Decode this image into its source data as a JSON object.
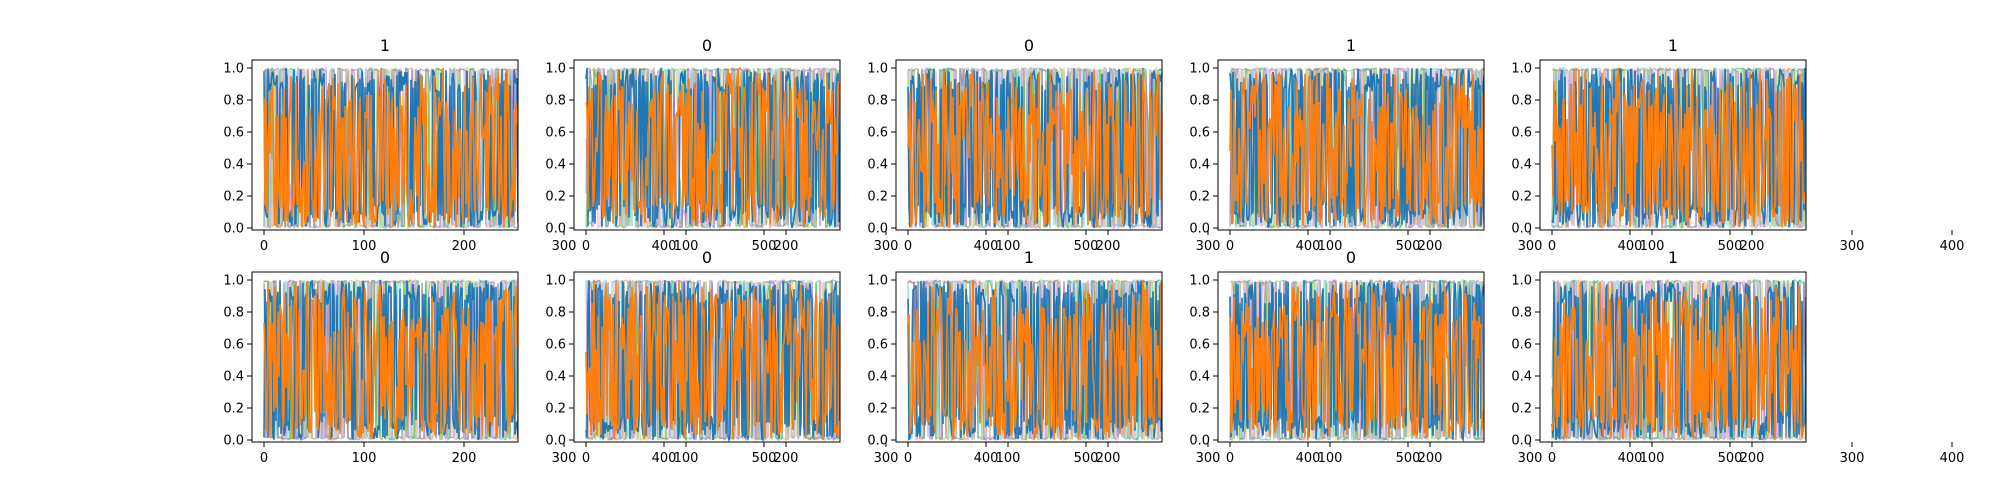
{
  "figure": {
    "rows": 2,
    "cols": 5,
    "panel_titles": [
      "1",
      "0",
      "0",
      "1",
      "1",
      "0",
      "0",
      "1",
      "0",
      "1"
    ]
  },
  "chart_data": {
    "type": "line",
    "description_of_series": "",
    "xlim": [
      0,
      512
    ],
    "ylim": [
      0.0,
      1.0
    ],
    "xticks": [
      0,
      100,
      200,
      300,
      400,
      500
    ],
    "yticks": [
      0.0,
      0.2,
      0.4,
      0.6,
      0.8,
      1.0
    ],
    "xtick_labels": [
      "0",
      "100",
      "200",
      "300",
      "400",
      "500"
    ],
    "ytick_labels": [
      "0.0",
      "0.2",
      "0.4",
      "0.6",
      "0.8",
      "1.0"
    ],
    "grid": false,
    "colors": {
      "primary": "#ff7f0e",
      "secondary": "#1f77b4",
      "accents": [
        "#17becf",
        "#bcbd22",
        "#2ca02c",
        "#e377c2",
        "#9467bd"
      ]
    },
    "panels": [
      {
        "title": "1",
        "orange_late_mean": 0.4,
        "blue_late_mean": 0.25
      },
      {
        "title": "0",
        "orange_late_mean": 0.55,
        "blue_late_mean": 0.3
      },
      {
        "title": "0",
        "orange_late_mean": 0.5,
        "blue_late_mean": 0.15
      },
      {
        "title": "1",
        "orange_late_mean": 0.45,
        "blue_late_mean": 0.2
      },
      {
        "title": "1",
        "orange_late_mean": 0.4,
        "blue_late_mean": 0.2
      },
      {
        "title": "0",
        "orange_late_mean": 0.5,
        "blue_late_mean": 0.25
      },
      {
        "title": "0",
        "orange_late_mean": 0.4,
        "blue_late_mean": 0.2
      },
      {
        "title": "1",
        "orange_late_mean": 0.35,
        "blue_late_mean": 0.15
      },
      {
        "title": "0",
        "orange_late_mean": 0.4,
        "blue_late_mean": 0.15
      },
      {
        "title": "1",
        "orange_late_mean": 0.3,
        "blue_late_mean": 0.15
      }
    ]
  }
}
